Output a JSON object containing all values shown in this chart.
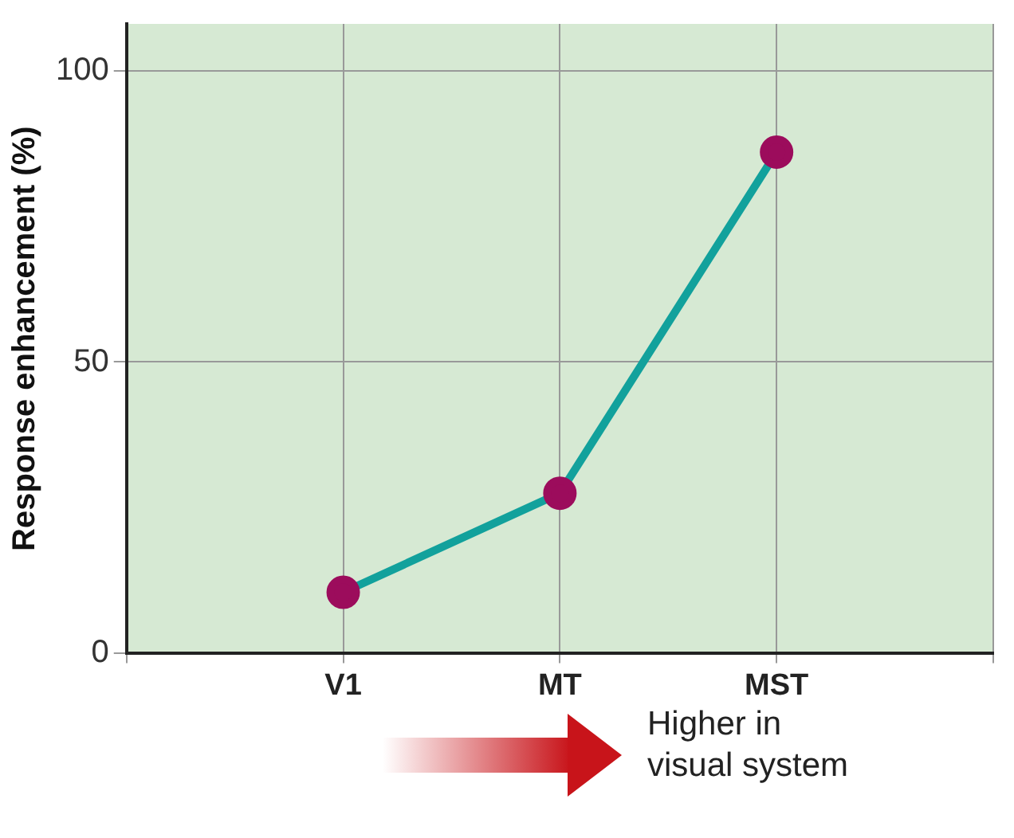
{
  "chart_data": {
    "type": "line",
    "ylabel": "Response enhancement (%)",
    "categories": [
      null,
      "V1",
      "MT",
      "MST",
      null
    ],
    "values": [
      null,
      10.5,
      27.5,
      86,
      null
    ],
    "color": "#12a19c",
    "colors": [
      null,
      "#9c0c5c",
      "#9c0c5c",
      "#9c0c5c",
      null
    ],
    "marker": "circle",
    "line_style": "solid",
    "grid": true,
    "ylim": [
      0,
      108
    ],
    "yticks": [
      0,
      50,
      100
    ],
    "annotations": [
      "Higher in visual system"
    ]
  }
}
